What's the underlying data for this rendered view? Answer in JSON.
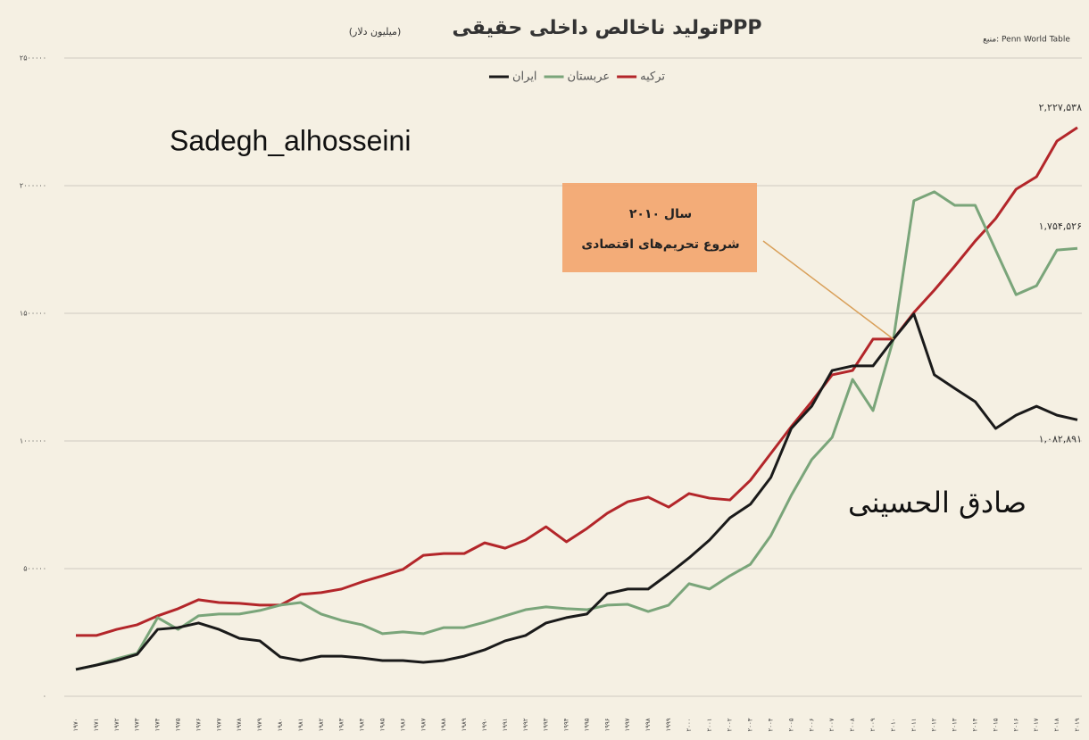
{
  "chart_data": {
    "type": "line",
    "title": "تولید ناخالص داخلی حقیقیPPP",
    "subtitle": "(میلیون دلار)",
    "source": "منبع: Penn World Table",
    "watermarks": [
      "Sadegh_alhosseini",
      "صادق الحسینی"
    ],
    "annotation": [
      "سال ۲۰۱۰",
      "شروع تحریم‌های اقتصادی"
    ],
    "categories": [
      "۱۹۷۰",
      "۱۹۷۱",
      "۱۹۷۲",
      "۱۹۷۳",
      "۱۹۷۴",
      "۱۹۷۵",
      "۱۹۷۶",
      "۱۹۷۷",
      "۱۹۷۸",
      "۱۹۷۹",
      "۱۹۸۰",
      "۱۹۸۱",
      "۱۹۸۲",
      "۱۹۸۳",
      "۱۹۸۴",
      "۱۹۸۵",
      "۱۹۸۶",
      "۱۹۸۷",
      "۱۹۸۸",
      "۱۹۸۹",
      "۱۹۹۰",
      "۱۹۹۱",
      "۱۹۹۲",
      "۱۹۹۳",
      "۱۹۹۴",
      "۱۹۹۵",
      "۱۹۹۶",
      "۱۹۹۷",
      "۱۹۹۸",
      "۱۹۹۹",
      "۲۰۰۰",
      "۲۰۰۱",
      "۲۰۰۲",
      "۲۰۰۳",
      "۲۰۰۴",
      "۲۰۰۵",
      "۲۰۰۶",
      "۲۰۰۷",
      "۲۰۰۸",
      "۲۰۰۹",
      "۲۰۱۰",
      "۲۰۱۱",
      "۲۰۱۲",
      "۲۰۱۳",
      "۲۰۱۴",
      "۲۰۱۵",
      "۲۰۱۶",
      "۲۰۱۷",
      "۲۰۱۸",
      "۲۰۱۹"
    ],
    "series": [
      {
        "name": "ترکیه",
        "color": "#b3262a",
        "values": [
          238000,
          238000,
          262000,
          280000,
          315000,
          343000,
          378000,
          367000,
          364000,
          357000,
          357000,
          399000,
          406000,
          420000,
          448000,
          472000,
          497000,
          552000,
          559000,
          559000,
          601000,
          580000,
          612000,
          664000,
          605000,
          657000,
          717000,
          762000,
          780000,
          741000,
          794000,
          776000,
          769000,
          846000,
          951000,
          1056000,
          1154000,
          1259000,
          1276000,
          1399000,
          1399000,
          1503000,
          1591000,
          1685000,
          1783000,
          1871000,
          1986000,
          2035000,
          2175000,
          2227538
        ],
        "value_labels": [
          null,
          null,
          null,
          null,
          null,
          null,
          null,
          null,
          null,
          null,
          null,
          null,
          null,
          null,
          null,
          null,
          null,
          null,
          null,
          null,
          null,
          null,
          null,
          null,
          null,
          null,
          null,
          null,
          null,
          null,
          null,
          null,
          null,
          null,
          null,
          null,
          null,
          null,
          null,
          null,
          null,
          null,
          null,
          null,
          null,
          null,
          null,
          null,
          null,
          "۲,۲۲۷,۵۳۸"
        ]
      },
      {
        "name": "عربستان",
        "color": "#7aa57a",
        "values": [
          105000,
          122000,
          147000,
          168000,
          308000,
          262000,
          315000,
          322000,
          322000,
          336000,
          357000,
          367000,
          322000,
          297000,
          280000,
          245000,
          252000,
          245000,
          269000,
          269000,
          290000,
          315000,
          339000,
          350000,
          343000,
          339000,
          357000,
          360000,
          332000,
          357000,
          441000,
          420000,
          472000,
          517000,
          629000,
          787000,
          927000,
          1014000,
          1241000,
          1119000,
          1399000,
          1941000,
          1976000,
          1923000,
          1923000,
          1748000,
          1573000,
          1608000,
          1748000,
          1754526
        ],
        "value_labels": [
          null,
          null,
          null,
          null,
          null,
          null,
          null,
          null,
          null,
          null,
          null,
          null,
          null,
          null,
          null,
          null,
          null,
          null,
          null,
          null,
          null,
          null,
          null,
          null,
          null,
          null,
          null,
          null,
          null,
          null,
          null,
          null,
          null,
          null,
          null,
          null,
          null,
          null,
          null,
          null,
          null,
          null,
          null,
          null,
          null,
          null,
          null,
          null,
          null,
          "۱,۷۵۴,۵۲۶"
        ]
      },
      {
        "name": "ایران",
        "color": "#1a1a1a",
        "values": [
          105000,
          122000,
          140000,
          164000,
          262000,
          269000,
          287000,
          262000,
          227000,
          217000,
          154000,
          140000,
          157000,
          157000,
          150000,
          140000,
          140000,
          133000,
          140000,
          157000,
          182000,
          217000,
          238000,
          287000,
          308000,
          322000,
          402000,
          420000,
          420000,
          479000,
          542000,
          612000,
          699000,
          752000,
          857000,
          1049000,
          1136000,
          1276000,
          1294000,
          1294000,
          1399000,
          1497000,
          1259000,
          1206000,
          1154000,
          1049000,
          1101000,
          1136000,
          1101000,
          1082891
        ],
        "value_labels": [
          null,
          null,
          null,
          null,
          null,
          null,
          null,
          null,
          null,
          null,
          null,
          null,
          null,
          null,
          null,
          null,
          null,
          null,
          null,
          null,
          null,
          null,
          null,
          null,
          null,
          null,
          null,
          null,
          null,
          null,
          null,
          null,
          null,
          null,
          null,
          null,
          null,
          null,
          null,
          null,
          null,
          null,
          null,
          null,
          null,
          null,
          null,
          null,
          null,
          "۱,۰۸۲,۸۹۱"
        ]
      }
    ],
    "ylim": [
      0,
      2500000
    ],
    "yticks": [
      {
        "value": 0,
        "label": "۰"
      },
      {
        "value": 500000,
        "label": "۵۰۰۰۰۰"
      },
      {
        "value": 1000000,
        "label": "۱۰۰۰۰۰۰"
      },
      {
        "value": 1500000,
        "label": "۱۵۰۰۰۰۰"
      },
      {
        "value": 2000000,
        "label": "۲۰۰۰۰۰۰"
      },
      {
        "value": 2500000,
        "label": "۲۵۰۰۰۰۰"
      }
    ],
    "grid": true
  }
}
